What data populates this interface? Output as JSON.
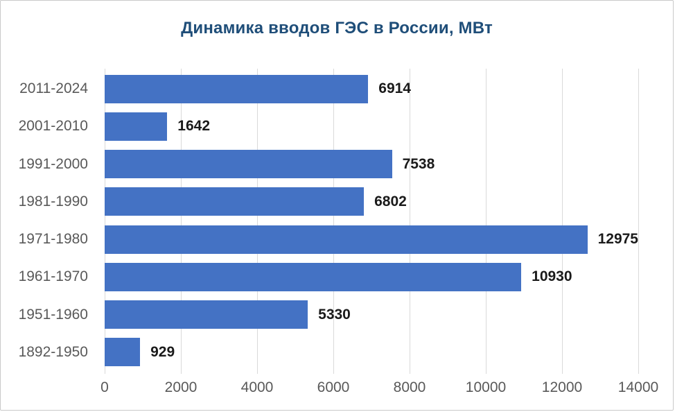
{
  "chart_data": {
    "type": "bar",
    "orientation": "horizontal",
    "title": "Динамика вводов ГЭС в России, МВт",
    "categories": [
      "2011-2024",
      "2001-2010",
      "1991-2000",
      "1981-1990",
      "1971-1980",
      "1961-1970",
      "1951-1960",
      "1892-1950"
    ],
    "values": [
      6914,
      1642,
      7538,
      6802,
      12975,
      10930,
      5330,
      929
    ],
    "value_labels": [
      "6914",
      "1642",
      "7538",
      "6802",
      "12975",
      "10930",
      "5330",
      "929"
    ],
    "xlabel": "",
    "ylabel": "",
    "xlim": [
      0,
      14000
    ],
    "x_ticks": [
      0,
      2000,
      4000,
      6000,
      8000,
      10000,
      12000,
      14000
    ],
    "x_tick_labels": [
      "0",
      "2000",
      "4000",
      "6000",
      "8000",
      "10000",
      "12000",
      "14000"
    ],
    "grid": "vertical-major",
    "legend": "none",
    "colors": {
      "bar": "#4472c4",
      "title": "#1f4e79",
      "axis_labels": "#595959",
      "data_labels": "#1a1a1a",
      "gridline": "#d9d9d9",
      "background": "#ffffff",
      "frame_border": "#c9c9c9"
    }
  }
}
